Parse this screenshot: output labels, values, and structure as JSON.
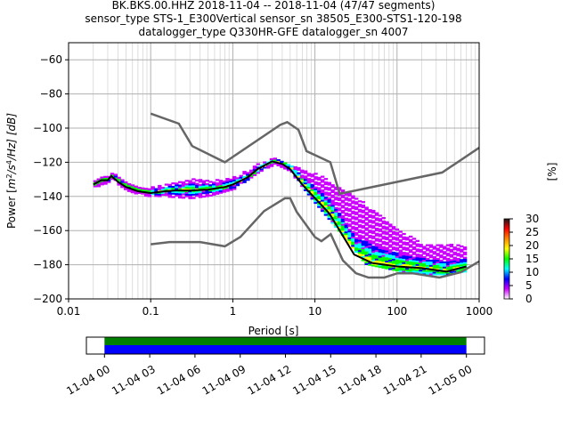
{
  "title": {
    "line1": "BK.BKS.00.HHZ   2018-11-04 -- 2018-11-04  (47/47 segments)",
    "line2": "sensor_type STS-1_E300Vertical sensor_sn 38505_E300-STS1-120-198",
    "line3": "datalogger_type Q330HR-GFE datalogger_sn 4007"
  },
  "chart_data": [
    {
      "type": "heatmap",
      "xlabel": "Period [s]",
      "ylabel": "Power [m²/s⁴/Hz] [dB]",
      "ylabel_parts": {
        "pre": "Power [",
        "m": "m",
        "exp2": "2",
        "slash": "/s",
        "exp4": "4",
        "tail": "/Hz] [dB]"
      },
      "x_scale": "log",
      "xlim": [
        0.01,
        1000
      ],
      "ylim": [
        -200,
        -50
      ],
      "x_ticks": [
        {
          "value": 0.01,
          "label": "0.01"
        },
        {
          "value": 0.1,
          "label": "0.1"
        },
        {
          "value": 1,
          "label": "1"
        },
        {
          "value": 10,
          "label": "10"
        },
        {
          "value": 100,
          "label": "100"
        },
        {
          "value": 1000,
          "label": "1000"
        }
      ],
      "y_ticks": [
        {
          "value": -60,
          "label": "−60"
        },
        {
          "value": -80,
          "label": "−80"
        },
        {
          "value": -100,
          "label": "−100"
        },
        {
          "value": -120,
          "label": "−120"
        },
        {
          "value": -140,
          "label": "−140"
        },
        {
          "value": -160,
          "label": "−160"
        },
        {
          "value": -180,
          "label": "−180"
        },
        {
          "value": -200,
          "label": "−200"
        }
      ],
      "grid": true,
      "noise_models": {
        "color": "#666666",
        "high": [
          {
            "x": 0.1,
            "y": -91.5
          },
          {
            "x": 0.22,
            "y": -97.4
          },
          {
            "x": 0.32,
            "y": -110.5
          },
          {
            "x": 0.8,
            "y": -120
          },
          {
            "x": 3.8,
            "y": -98
          },
          {
            "x": 4.6,
            "y": -96.5
          },
          {
            "x": 6.3,
            "y": -101
          },
          {
            "x": 7.9,
            "y": -113.5
          },
          {
            "x": 15.4,
            "y": -120
          },
          {
            "x": 20,
            "y": -138.5
          },
          {
            "x": 354.8,
            "y": -126
          },
          {
            "x": 1000,
            "y": -111.5
          }
        ],
        "low": [
          {
            "x": 0.1,
            "y": -168
          },
          {
            "x": 0.17,
            "y": -166.7
          },
          {
            "x": 0.4,
            "y": -166.7
          },
          {
            "x": 0.8,
            "y": -169.2
          },
          {
            "x": 1.24,
            "y": -163.7
          },
          {
            "x": 2.4,
            "y": -148.6
          },
          {
            "x": 4.3,
            "y": -141.1
          },
          {
            "x": 5,
            "y": -141.1
          },
          {
            "x": 6,
            "y": -149
          },
          {
            "x": 10,
            "y": -163.8
          },
          {
            "x": 12,
            "y": -166.2
          },
          {
            "x": 15.6,
            "y": -162.1
          },
          {
            "x": 21.9,
            "y": -177.5
          },
          {
            "x": 31.6,
            "y": -185
          },
          {
            "x": 45,
            "y": -187.5
          },
          {
            "x": 70,
            "y": -187.5
          },
          {
            "x": 101,
            "y": -185
          },
          {
            "x": 154,
            "y": -185
          },
          {
            "x": 328,
            "y": -187.5
          },
          {
            "x": 600,
            "y": -184.4
          },
          {
            "x": 1000,
            "y": -178
          }
        ]
      },
      "mode_curve": [
        {
          "x": 0.02,
          "y": -133
        },
        {
          "x": 0.025,
          "y": -130.5
        },
        {
          "x": 0.03,
          "y": -130.5
        },
        {
          "x": 0.033,
          "y": -128
        },
        {
          "x": 0.04,
          "y": -131.5
        },
        {
          "x": 0.05,
          "y": -134.5
        },
        {
          "x": 0.07,
          "y": -137
        },
        {
          "x": 0.1,
          "y": -138
        },
        {
          "x": 0.15,
          "y": -137
        },
        {
          "x": 0.2,
          "y": -136.5
        },
        {
          "x": 0.3,
          "y": -136.5
        },
        {
          "x": 0.5,
          "y": -136
        },
        {
          "x": 0.8,
          "y": -134.5
        },
        {
          "x": 1,
          "y": -133
        },
        {
          "x": 1.5,
          "y": -129
        },
        {
          "x": 2,
          "y": -124
        },
        {
          "x": 3,
          "y": -119.5
        },
        {
          "x": 4,
          "y": -121
        },
        {
          "x": 5,
          "y": -124
        },
        {
          "x": 7,
          "y": -133
        },
        {
          "x": 10,
          "y": -141
        },
        {
          "x": 15,
          "y": -150
        },
        {
          "x": 20,
          "y": -160
        },
        {
          "x": 30,
          "y": -174
        },
        {
          "x": 50,
          "y": -179
        },
        {
          "x": 100,
          "y": -181
        },
        {
          "x": 200,
          "y": -182
        },
        {
          "x": 400,
          "y": -184
        },
        {
          "x": 700,
          "y": -181
        }
      ],
      "density_upper": [
        {
          "x": 0.1,
          "y": -135
        },
        {
          "x": 0.3,
          "y": -130
        },
        {
          "x": 0.5,
          "y": -131
        },
        {
          "x": 1,
          "y": -129
        },
        {
          "x": 2,
          "y": -121
        },
        {
          "x": 3,
          "y": -118
        },
        {
          "x": 5,
          "y": -122
        },
        {
          "x": 10,
          "y": -127
        },
        {
          "x": 20,
          "y": -135
        },
        {
          "x": 40,
          "y": -145
        },
        {
          "x": 100,
          "y": -160
        },
        {
          "x": 200,
          "y": -168
        },
        {
          "x": 400,
          "y": -168
        },
        {
          "x": 700,
          "y": -170
        }
      ],
      "density_lower": [
        {
          "x": 0.1,
          "y": -140
        },
        {
          "x": 0.3,
          "y": -141.5
        },
        {
          "x": 0.5,
          "y": -140
        },
        {
          "x": 1,
          "y": -136
        },
        {
          "x": 2,
          "y": -126
        },
        {
          "x": 3,
          "y": -122
        },
        {
          "x": 5,
          "y": -127
        },
        {
          "x": 10,
          "y": -145
        },
        {
          "x": 20,
          "y": -162
        },
        {
          "x": 40,
          "y": -180
        },
        {
          "x": 100,
          "y": -184
        },
        {
          "x": 200,
          "y": -186
        },
        {
          "x": 400,
          "y": -186
        },
        {
          "x": 700,
          "y": -184
        }
      ],
      "colorbar": {
        "label": "[%]",
        "min": 0,
        "max": 30,
        "ticks": [
          {
            "value": 30,
            "label": "30"
          },
          {
            "value": 25,
            "label": "25"
          },
          {
            "value": 20,
            "label": "20"
          },
          {
            "value": 15,
            "label": "15"
          },
          {
            "value": 10,
            "label": "10"
          },
          {
            "value": 5,
            "label": "5"
          },
          {
            "value": 0,
            "label": "0"
          }
        ],
        "colors": [
          "#ffffff",
          "#cc00ff",
          "#0000ff",
          "#00ffff",
          "#00ff00",
          "#ffff00",
          "#ff8800",
          "#ff0000",
          "#1a1a1a"
        ]
      }
    },
    {
      "type": "bar",
      "description_free": true,
      "x_ticks": [
        {
          "value": 0,
          "label": "11-04 00"
        },
        {
          "value": 3,
          "label": "11-04 03"
        },
        {
          "value": 6,
          "label": "11-04 06"
        },
        {
          "value": 9,
          "label": "11-04 09"
        },
        {
          "value": 12,
          "label": "11-04 12"
        },
        {
          "value": 15,
          "label": "11-04 15"
        },
        {
          "value": 18,
          "label": "11-04 18"
        },
        {
          "value": 21,
          "label": "11-04 21"
        },
        {
          "value": 24,
          "label": "11-05 00"
        }
      ],
      "xlim_hours": [
        -1.2,
        25.2
      ],
      "coverage_hours": [
        0,
        24
      ],
      "colors": {
        "top": "#008000",
        "bottom": "#0000ff"
      }
    }
  ]
}
